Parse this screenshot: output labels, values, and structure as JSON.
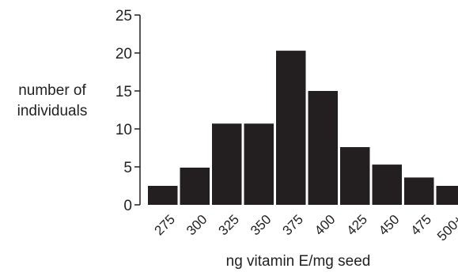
{
  "chart_data": {
    "type": "bar",
    "title": "",
    "xlabel": "ng vitamin E/mg seed",
    "ylabel_lines": [
      "number of",
      "individuals"
    ],
    "categories": [
      "275",
      "300",
      "325",
      "350",
      "375",
      "400",
      "425",
      "450",
      "475",
      "500+"
    ],
    "values": [
      2.5,
      4.9,
      10.7,
      10.7,
      20.3,
      15.0,
      7.6,
      5.3,
      3.6,
      2.5
    ],
    "ylim": [
      0,
      25
    ],
    "yticks": [
      0,
      5,
      10,
      15,
      20,
      25
    ],
    "grid": false,
    "legend": "none",
    "bar_color": "#231f20"
  }
}
